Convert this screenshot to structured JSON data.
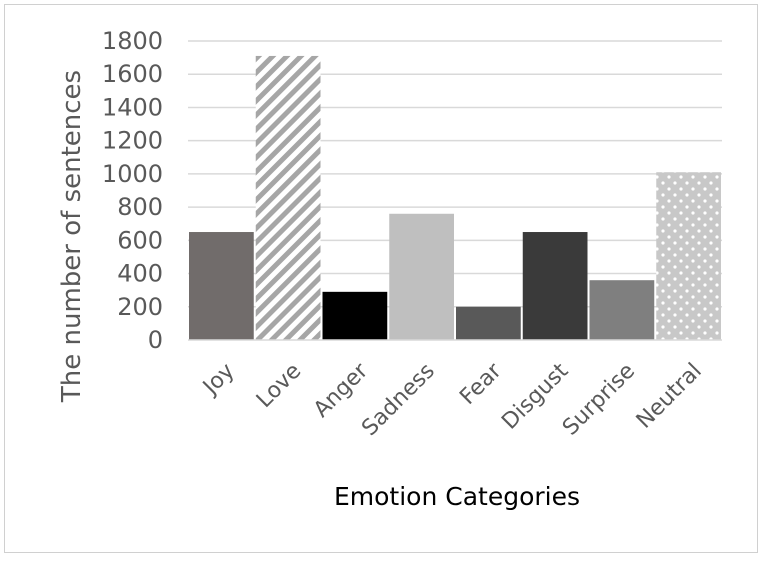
{
  "chart_data": {
    "type": "bar",
    "title": "",
    "xlabel": "Emotion Categories",
    "ylabel": "The number of sentences",
    "ylim": [
      0,
      1800
    ],
    "yticks": [
      0,
      200,
      400,
      600,
      800,
      1000,
      1200,
      1400,
      1600,
      1800
    ],
    "grid": true,
    "legend": "none",
    "categories": [
      "Joy",
      "Love",
      "Anger",
      "Sadness",
      "Fear",
      "Disgust",
      "Surprise",
      "Neutral"
    ],
    "values": [
      650,
      1710,
      290,
      760,
      200,
      650,
      360,
      1010
    ],
    "bar_styles": [
      {
        "fill": "#716c6b",
        "pattern": "solid"
      },
      {
        "fill": "#a6a6a6",
        "pattern": "diagonal-stripes"
      },
      {
        "fill": "#000000",
        "pattern": "solid"
      },
      {
        "fill": "#bfbfbf",
        "pattern": "solid"
      },
      {
        "fill": "#595959",
        "pattern": "solid"
      },
      {
        "fill": "#3a3a3a",
        "pattern": "solid"
      },
      {
        "fill": "#7f7f7f",
        "pattern": "solid"
      },
      {
        "fill": "#d9d9d9",
        "pattern": "dots"
      }
    ]
  }
}
